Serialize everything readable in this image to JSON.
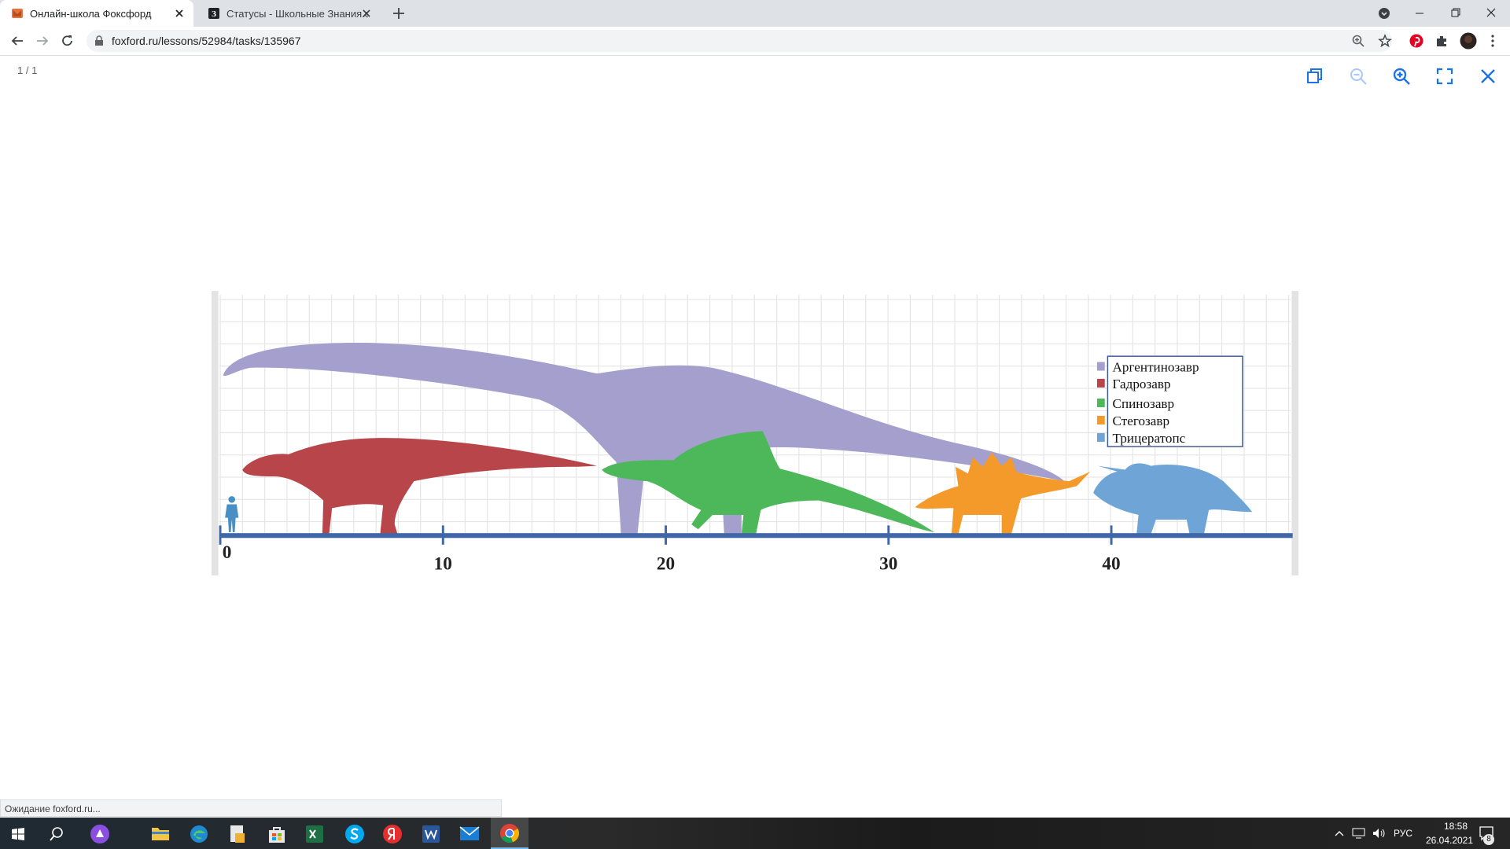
{
  "browser": {
    "tabs": [
      "Онлайн-школа Фоксфорд",
      "Статусы - Школьные Знания.com"
    ],
    "url": "foxford.ru/lessons/52984/tasks/135967",
    "status": "Ожидание foxford.ru..."
  },
  "viewer": {
    "counter": "1 / 1"
  },
  "figure": {
    "axis_ticks": [
      0,
      10,
      20,
      30,
      40
    ],
    "legend": [
      {
        "name": "Аргентинозавр",
        "color": "#a59fcd"
      },
      {
        "name": "Гадрозавр",
        "color": "#b8454a"
      },
      {
        "name": "Спинозавр",
        "color": "#4cb85a"
      },
      {
        "name": "Стегозавр",
        "color": "#f39a2a"
      },
      {
        "name": "Трицератопс",
        "color": "#6fa5d6"
      }
    ]
  },
  "taskbar": {
    "language": "РУС",
    "time": "18:58",
    "date": "26.04.2021",
    "notifications": "8"
  }
}
